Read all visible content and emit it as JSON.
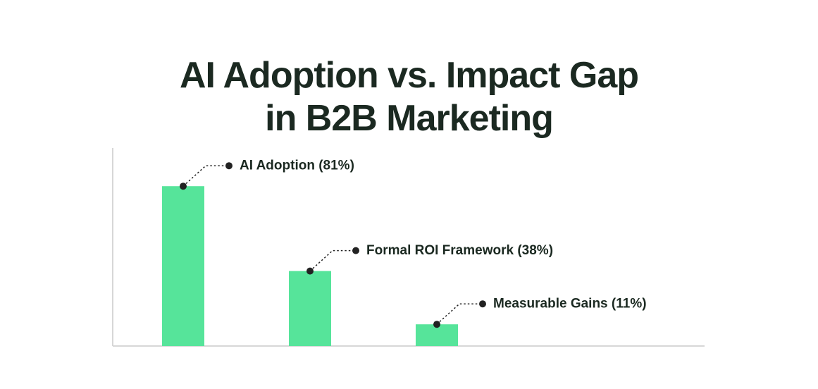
{
  "header": {
    "title_lines": [
      "AI Adoption vs. Impact Gap",
      "in B2B Marketing"
    ]
  },
  "chart_data": {
    "type": "bar",
    "title": "AI Adoption vs. Impact Gap in B2B Marketing",
    "categories": [
      "AI Adoption",
      "Formal ROI Framework",
      "Measurable Gains"
    ],
    "values": [
      81,
      38,
      11
    ],
    "unit": "%",
    "annotations": [
      "AI Adoption (81%)",
      "Formal ROI Framework (38%)",
      "Measurable Gains (11%)"
    ],
    "xlabel": "",
    "ylabel": "",
    "ylim": [
      0,
      100
    ],
    "grid": false,
    "legend": false,
    "axis_ticks_visible": false,
    "colors": {
      "bar": "#56e49a",
      "axis": "#d7d7d7",
      "leader": "#222222",
      "text": "#1b2921",
      "title": "#1b2921",
      "background": "#ffffff"
    }
  }
}
